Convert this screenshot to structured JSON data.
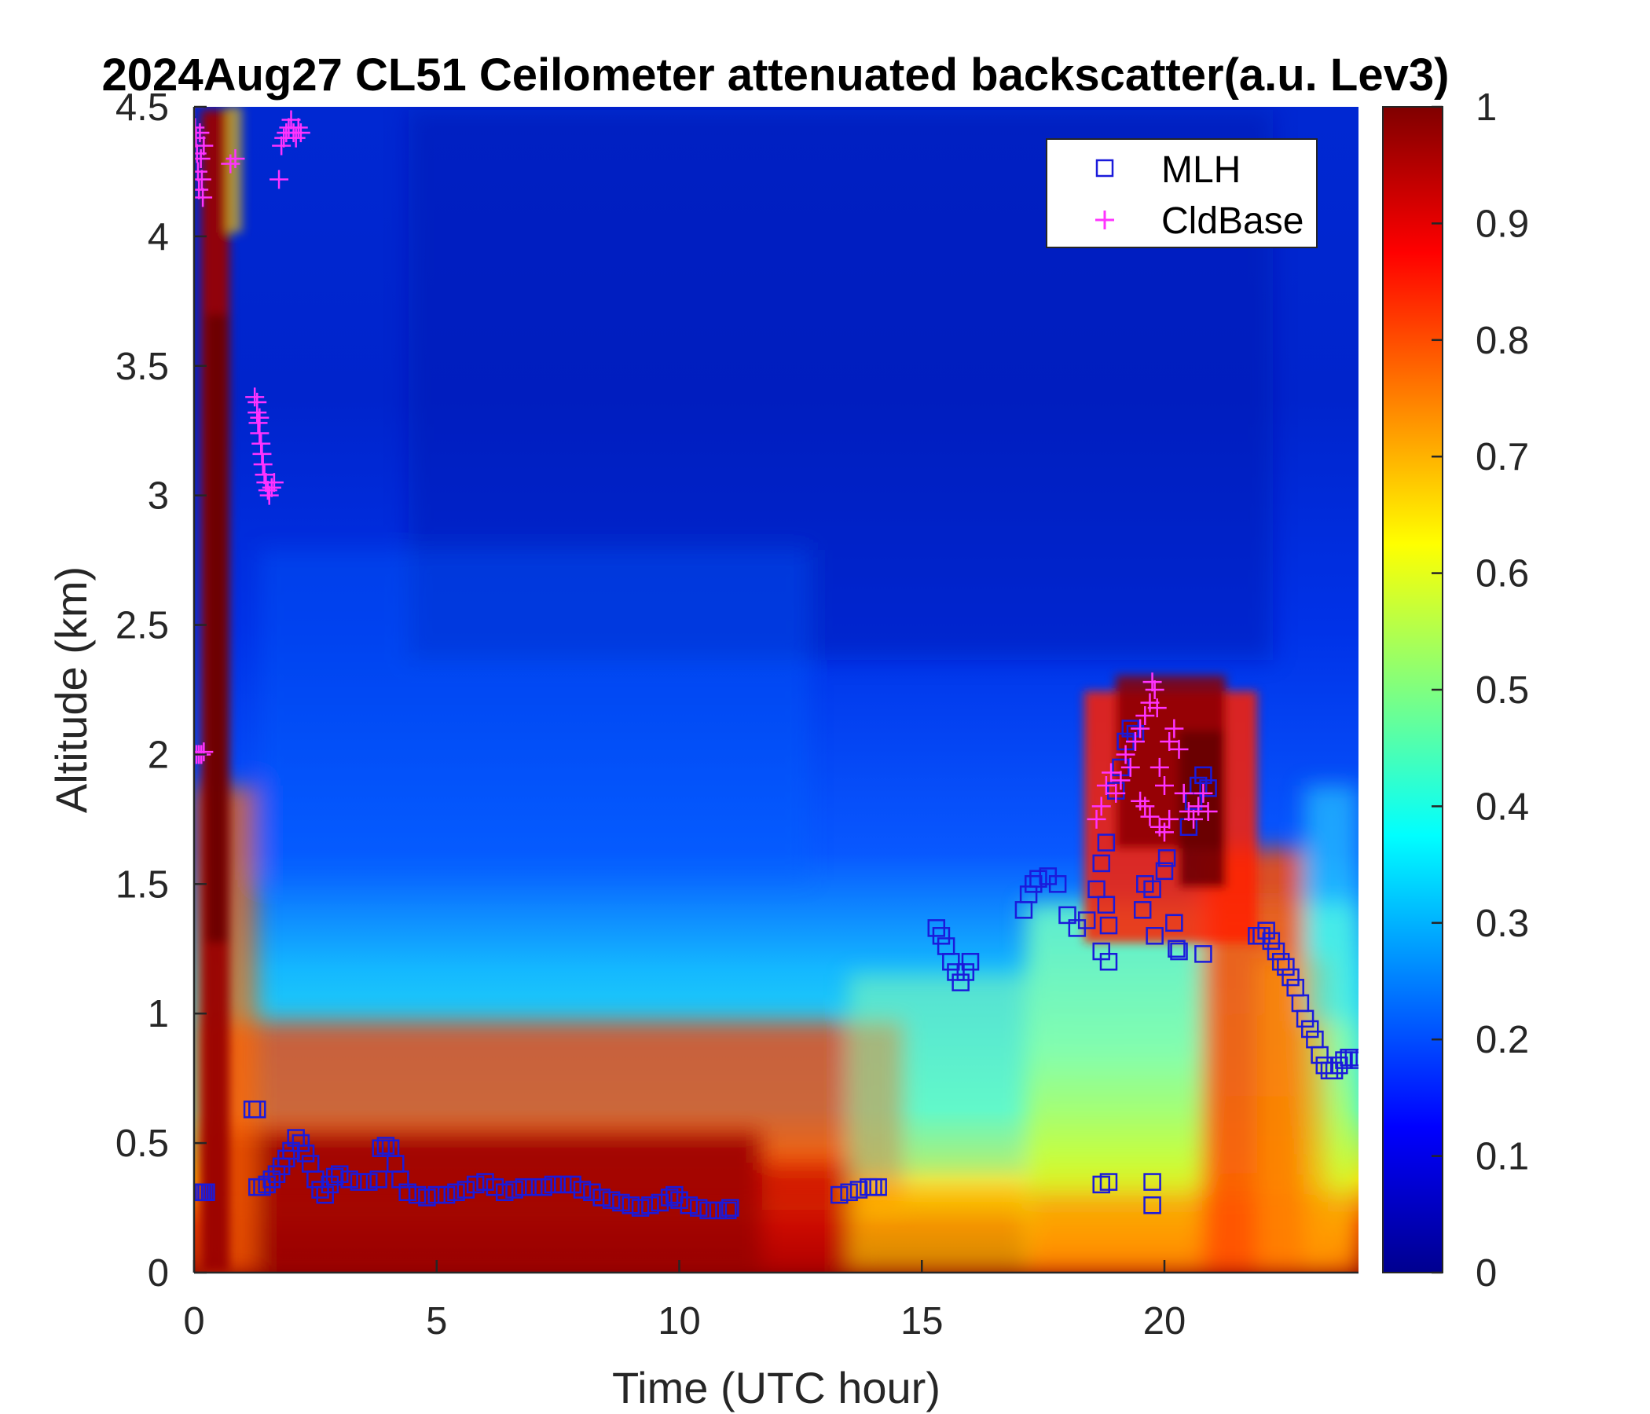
{
  "chart_data": {
    "type": "heatmap",
    "title": "2024Aug27 CL51 Ceilometer attenuated backscatter(a.u. Lev3)",
    "xlabel": "Time (UTC hour)",
    "ylabel": "Altitude (km)",
    "xlim": [
      0,
      24
    ],
    "ylim": [
      0,
      4.5
    ],
    "xticks": [
      0,
      5,
      10,
      15,
      20
    ],
    "xtick_labels": [
      "0",
      "5",
      "10",
      "15",
      "20"
    ],
    "yticks": [
      0,
      0.5,
      1,
      1.5,
      2,
      2.5,
      3,
      3.5,
      4,
      4.5
    ],
    "ytick_labels": [
      "0",
      "0.5",
      "1",
      "1.5",
      "2",
      "2.5",
      "3",
      "3.5",
      "4",
      "4.5"
    ],
    "colormap": "jet",
    "colorbar": {
      "range": [
        0,
        1
      ],
      "ticks": [
        0,
        0.1,
        0.2,
        0.3,
        0.4,
        0.5,
        0.6,
        0.7,
        0.8,
        0.9,
        1
      ],
      "tick_labels": [
        "0",
        "0.1",
        "0.2",
        "0.3",
        "0.4",
        "0.5",
        "0.6",
        "0.7",
        "0.8",
        "0.9",
        "1"
      ]
    },
    "legend": {
      "placement": "top-right",
      "entries": [
        {
          "label": "MLH",
          "marker": "square",
          "color": "#1a1adb"
        },
        {
          "label": "CldBase",
          "marker": "plus",
          "color": "#ff33ff"
        }
      ]
    },
    "series": [
      {
        "name": "MLH",
        "marker": "square",
        "color": "#1a1adb",
        "points": [
          [
            0.0,
            0.31
          ],
          [
            0.05,
            0.31
          ],
          [
            0.1,
            0.31
          ],
          [
            0.15,
            0.31
          ],
          [
            0.2,
            0.31
          ],
          [
            0.25,
            0.31
          ],
          [
            1.2,
            0.63
          ],
          [
            1.3,
            0.63
          ],
          [
            1.3,
            0.33
          ],
          [
            1.4,
            0.33
          ],
          [
            1.5,
            0.34
          ],
          [
            1.6,
            0.36
          ],
          [
            1.7,
            0.38
          ],
          [
            1.8,
            0.41
          ],
          [
            1.9,
            0.44
          ],
          [
            2.0,
            0.47
          ],
          [
            2.1,
            0.52
          ],
          [
            2.2,
            0.5
          ],
          [
            2.3,
            0.46
          ],
          [
            2.4,
            0.42
          ],
          [
            2.5,
            0.36
          ],
          [
            2.6,
            0.32
          ],
          [
            2.7,
            0.3
          ],
          [
            2.8,
            0.34
          ],
          [
            2.9,
            0.37
          ],
          [
            3.0,
            0.38
          ],
          [
            3.2,
            0.36
          ],
          [
            3.4,
            0.35
          ],
          [
            3.6,
            0.35
          ],
          [
            3.8,
            0.36
          ],
          [
            3.85,
            0.48
          ],
          [
            3.95,
            0.49
          ],
          [
            4.05,
            0.48
          ],
          [
            4.15,
            0.42
          ],
          [
            4.25,
            0.36
          ],
          [
            4.4,
            0.31
          ],
          [
            4.6,
            0.3
          ],
          [
            4.8,
            0.29
          ],
          [
            5.0,
            0.3
          ],
          [
            5.2,
            0.3
          ],
          [
            5.4,
            0.31
          ],
          [
            5.6,
            0.32
          ],
          [
            5.8,
            0.34
          ],
          [
            6.0,
            0.35
          ],
          [
            6.2,
            0.33
          ],
          [
            6.4,
            0.31
          ],
          [
            6.6,
            0.32
          ],
          [
            6.8,
            0.33
          ],
          [
            7.0,
            0.33
          ],
          [
            7.2,
            0.33
          ],
          [
            7.4,
            0.34
          ],
          [
            7.6,
            0.34
          ],
          [
            7.8,
            0.34
          ],
          [
            8.0,
            0.32
          ],
          [
            8.2,
            0.31
          ],
          [
            8.4,
            0.29
          ],
          [
            8.6,
            0.28
          ],
          [
            8.8,
            0.27
          ],
          [
            9.0,
            0.26
          ],
          [
            9.2,
            0.25
          ],
          [
            9.4,
            0.26
          ],
          [
            9.6,
            0.27
          ],
          [
            9.8,
            0.29
          ],
          [
            9.9,
            0.3
          ],
          [
            10.0,
            0.28
          ],
          [
            10.2,
            0.26
          ],
          [
            10.4,
            0.25
          ],
          [
            10.6,
            0.24
          ],
          [
            10.8,
            0.24
          ],
          [
            11.0,
            0.24
          ],
          [
            11.05,
            0.25
          ],
          [
            13.3,
            0.3
          ],
          [
            13.5,
            0.31
          ],
          [
            13.7,
            0.32
          ],
          [
            13.9,
            0.33
          ],
          [
            14.0,
            0.33
          ],
          [
            14.1,
            0.33
          ],
          [
            15.3,
            1.33
          ],
          [
            15.4,
            1.3
          ],
          [
            15.5,
            1.26
          ],
          [
            15.6,
            1.2
          ],
          [
            15.7,
            1.16
          ],
          [
            15.8,
            1.12
          ],
          [
            15.9,
            1.16
          ],
          [
            16.0,
            1.2
          ],
          [
            17.1,
            1.4
          ],
          [
            17.2,
            1.46
          ],
          [
            17.3,
            1.5
          ],
          [
            17.4,
            1.52
          ],
          [
            17.6,
            1.53
          ],
          [
            17.8,
            1.5
          ],
          [
            18.0,
            1.38
          ],
          [
            18.2,
            1.33
          ],
          [
            18.4,
            1.36
          ],
          [
            18.6,
            1.48
          ],
          [
            18.7,
            1.58
          ],
          [
            18.8,
            1.66
          ],
          [
            18.7,
            1.24
          ],
          [
            18.85,
            1.2
          ],
          [
            18.85,
            1.34
          ],
          [
            18.8,
            1.42
          ],
          [
            19.0,
            1.86
          ],
          [
            19.1,
            1.95
          ],
          [
            19.2,
            2.05
          ],
          [
            19.3,
            2.1
          ],
          [
            19.4,
            2.08
          ],
          [
            19.55,
            1.4
          ],
          [
            19.6,
            1.5
          ],
          [
            19.75,
            1.48
          ],
          [
            19.8,
            1.3
          ],
          [
            20.0,
            1.55
          ],
          [
            20.05,
            1.6
          ],
          [
            20.2,
            1.35
          ],
          [
            20.25,
            1.25
          ],
          [
            20.3,
            1.24
          ],
          [
            20.5,
            1.72
          ],
          [
            20.6,
            1.82
          ],
          [
            20.7,
            1.88
          ],
          [
            20.8,
            1.92
          ],
          [
            20.9,
            1.87
          ],
          [
            20.8,
            1.23
          ],
          [
            18.7,
            0.34
          ],
          [
            18.85,
            0.35
          ],
          [
            19.75,
            0.35
          ],
          [
            19.75,
            0.26
          ],
          [
            21.9,
            1.3
          ],
          [
            22.0,
            1.3
          ],
          [
            22.1,
            1.32
          ],
          [
            22.2,
            1.28
          ],
          [
            22.3,
            1.24
          ],
          [
            22.4,
            1.2
          ],
          [
            22.5,
            1.18
          ],
          [
            22.6,
            1.14
          ],
          [
            22.7,
            1.1
          ],
          [
            22.8,
            1.04
          ],
          [
            22.9,
            0.98
          ],
          [
            23.0,
            0.94
          ],
          [
            23.1,
            0.9
          ],
          [
            23.2,
            0.84
          ],
          [
            23.3,
            0.8
          ],
          [
            23.4,
            0.78
          ],
          [
            23.5,
            0.78
          ],
          [
            23.6,
            0.8
          ],
          [
            23.7,
            0.82
          ],
          [
            23.8,
            0.83
          ],
          [
            23.9,
            0.83
          ],
          [
            24.0,
            0.82
          ]
        ]
      },
      {
        "name": "CldBase",
        "marker": "plus",
        "color": "#ff33ff",
        "points": [
          [
            0.0,
            4.5
          ],
          [
            0.02,
            4.42
          ],
          [
            0.04,
            4.38
          ],
          [
            0.06,
            4.32
          ],
          [
            0.08,
            4.25
          ],
          [
            0.1,
            4.18
          ],
          [
            0.12,
            4.4
          ],
          [
            0.14,
            4.3
          ],
          [
            0.16,
            4.22
          ],
          [
            0.18,
            4.15
          ],
          [
            0.2,
            4.35
          ],
          [
            0.05,
            2.0
          ],
          [
            0.1,
            2.0
          ],
          [
            0.15,
            2.0
          ],
          [
            0.2,
            2.01
          ],
          [
            0.75,
            4.28
          ],
          [
            0.85,
            4.3
          ],
          [
            1.75,
            4.22
          ],
          [
            1.8,
            4.35
          ],
          [
            1.85,
            4.38
          ],
          [
            1.9,
            4.4
          ],
          [
            1.95,
            4.42
          ],
          [
            2.0,
            4.45
          ],
          [
            2.05,
            4.4
          ],
          [
            2.1,
            4.38
          ],
          [
            2.15,
            4.42
          ],
          [
            2.2,
            4.4
          ],
          [
            1.25,
            3.38
          ],
          [
            1.3,
            3.32
          ],
          [
            1.32,
            3.28
          ],
          [
            1.35,
            3.24
          ],
          [
            1.38,
            3.2
          ],
          [
            1.4,
            3.16
          ],
          [
            1.42,
            3.12
          ],
          [
            1.45,
            3.08
          ],
          [
            1.48,
            3.05
          ],
          [
            1.52,
            3.02
          ],
          [
            1.55,
            3.0
          ],
          [
            1.6,
            3.03
          ],
          [
            1.65,
            3.05
          ],
          [
            1.3,
            3.36
          ],
          [
            1.35,
            3.3
          ],
          [
            18.6,
            1.75
          ],
          [
            18.7,
            1.8
          ],
          [
            18.8,
            1.88
          ],
          [
            18.9,
            1.93
          ],
          [
            19.0,
            1.85
          ],
          [
            19.1,
            1.9
          ],
          [
            19.2,
            2.0
          ],
          [
            19.3,
            1.95
          ],
          [
            19.4,
            2.05
          ],
          [
            19.5,
            2.1
          ],
          [
            19.6,
            2.15
          ],
          [
            19.7,
            2.2
          ],
          [
            19.75,
            2.28
          ],
          [
            19.8,
            2.25
          ],
          [
            19.85,
            2.18
          ],
          [
            19.9,
            1.95
          ],
          [
            20.0,
            1.88
          ],
          [
            20.1,
            2.05
          ],
          [
            20.2,
            2.1
          ],
          [
            20.3,
            2.02
          ],
          [
            20.4,
            1.85
          ],
          [
            20.5,
            1.78
          ],
          [
            20.6,
            1.75
          ],
          [
            20.7,
            1.8
          ],
          [
            20.8,
            1.85
          ],
          [
            20.9,
            1.78
          ],
          [
            19.5,
            1.82
          ],
          [
            19.6,
            1.8
          ],
          [
            19.7,
            1.76
          ],
          [
            19.9,
            1.72
          ],
          [
            20.0,
            1.7
          ],
          [
            20.1,
            1.75
          ]
        ]
      }
    ]
  }
}
